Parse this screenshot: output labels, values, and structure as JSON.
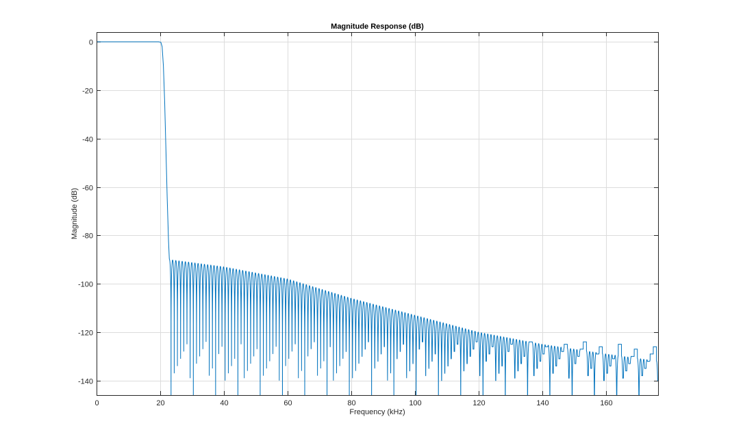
{
  "chart_data": {
    "type": "line",
    "title": "Magnitude Response (dB)",
    "xlabel": "Frequency (kHz)",
    "ylabel": "Magnitude (dB)",
    "xlim": [
      0,
      176.4
    ],
    "ylim": [
      -146,
      4
    ],
    "xticks": [
      0,
      20,
      40,
      60,
      80,
      100,
      120,
      140,
      160
    ],
    "xtick_labels": [
      "0",
      "20",
      "40",
      "60",
      "80",
      "100",
      "120",
      "140",
      "160"
    ],
    "yticks": [
      0,
      -20,
      -40,
      -60,
      -80,
      -100,
      -120,
      -140
    ],
    "ytick_labels": [
      "0",
      "-20",
      "-40",
      "-60",
      "-80",
      "-100",
      "-120",
      "-140"
    ],
    "grid": true,
    "series": [
      {
        "color": "#0072bd",
        "passband_edge_khz": 20.0,
        "stopband_start_khz": 22.9,
        "transition": [
          [
            0,
            0
          ],
          [
            19.5,
            0
          ],
          [
            20.2,
            -0.2
          ],
          [
            20.6,
            -2
          ],
          [
            21.0,
            -10
          ],
          [
            21.4,
            -25
          ],
          [
            21.8,
            -45
          ],
          [
            22.2,
            -65
          ],
          [
            22.6,
            -82
          ],
          [
            22.9,
            -91
          ]
        ],
        "stopband_envelope": [
          [
            22.9,
            -90
          ],
          [
            40,
            -93
          ],
          [
            60,
            -98
          ],
          [
            80,
            -106
          ],
          [
            100,
            -113
          ],
          [
            120,
            -120
          ],
          [
            140,
            -125
          ],
          [
            160,
            -129
          ],
          [
            176.4,
            -132
          ]
        ],
        "stopband_ripple_period_khz": 1.0,
        "stopband_floor_db": -146
      }
    ]
  }
}
